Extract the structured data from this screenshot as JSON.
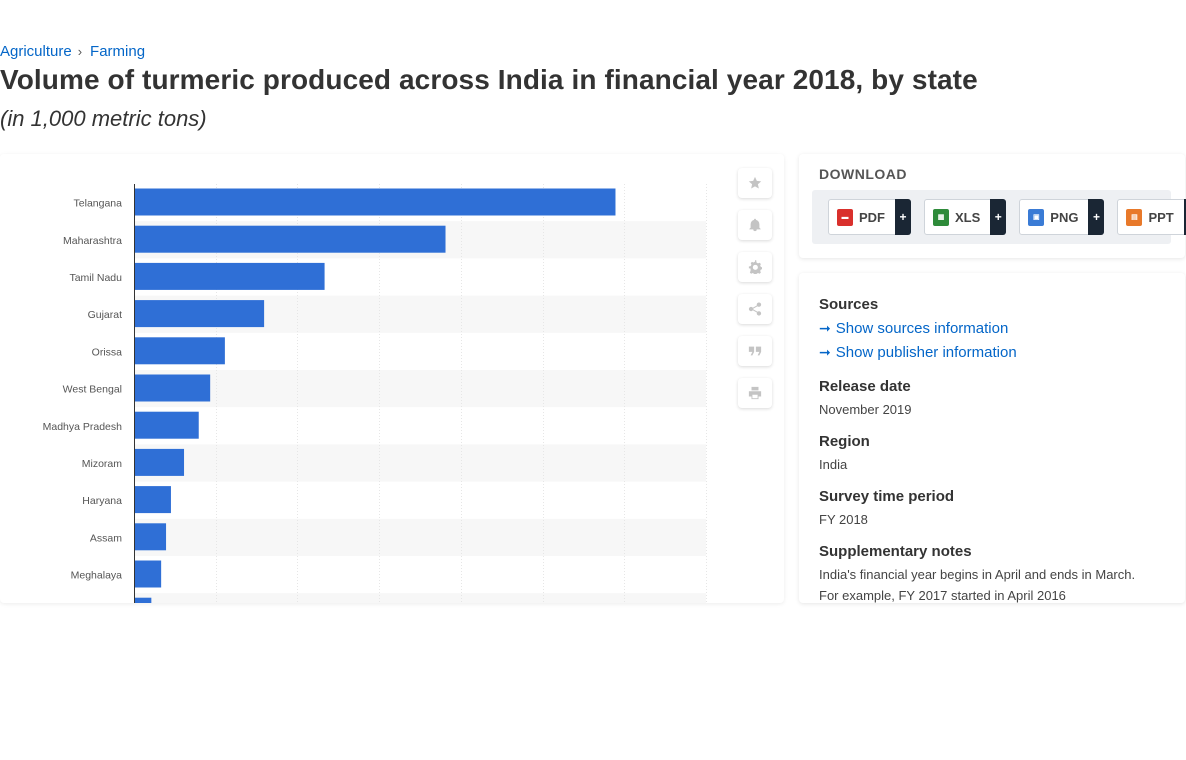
{
  "breadcrumb": {
    "items": [
      "Agriculture",
      "Farming"
    ],
    "separator": "›"
  },
  "title": "Volume of turmeric produced across India in financial year 2018, by state",
  "subtitle": "(in 1,000 metric tons)",
  "tools": [
    {
      "name": "favorite-icon"
    },
    {
      "name": "bell-icon"
    },
    {
      "name": "gear-icon"
    },
    {
      "name": "share-icon"
    },
    {
      "name": "quote-icon"
    },
    {
      "name": "print-icon"
    }
  ],
  "download": {
    "title": "DOWNLOAD",
    "buttons": [
      {
        "label": "PDF",
        "plus": "+",
        "color": "#d9302c",
        "icon": "pdf-icon"
      },
      {
        "label": "XLS",
        "plus": "+",
        "color": "#2e8b3a",
        "icon": "xls-icon"
      },
      {
        "label": "PNG",
        "plus": "+",
        "color": "#3a7bd5",
        "icon": "png-icon"
      },
      {
        "label": "PPT",
        "plus": "+",
        "color": "#e8792a",
        "icon": "ppt-icon"
      }
    ]
  },
  "info": {
    "sources_title": "Sources",
    "show_sources": "Show sources information",
    "show_publisher": "Show publisher information",
    "release_title": "Release date",
    "release_value": "November 2019",
    "region_title": "Region",
    "region_value": "India",
    "survey_title": "Survey time period",
    "survey_value": "FY 2018",
    "notes_title": "Supplementary notes",
    "notes_value": "India's financial year begins in April and ends in March. For example, FY 2017 started in April 2016"
  },
  "colors": {
    "bar": "#2f6fd6",
    "link": "#0466c8",
    "grid": "#e6e6e6",
    "stripe": "#f7f7f7"
  },
  "chart_data": {
    "type": "bar",
    "orientation": "horizontal",
    "title": "Volume of turmeric produced across India in financial year 2018, by state",
    "xlabel": "",
    "ylabel": "",
    "unit": "1,000 metric tons",
    "xlim": [
      0,
      350
    ],
    "grid_step": 50,
    "categories": [
      "Telangana",
      "Maharashtra",
      "Tamil Nadu",
      "Gujarat",
      "Orissa",
      "West Bengal",
      "Madhya Pradesh",
      "Mizoram",
      "Haryana",
      "Assam",
      "Meghalaya",
      ""
    ],
    "values": [
      294,
      190,
      116,
      79,
      55,
      46,
      39,
      30,
      22,
      19,
      16,
      10
    ]
  }
}
